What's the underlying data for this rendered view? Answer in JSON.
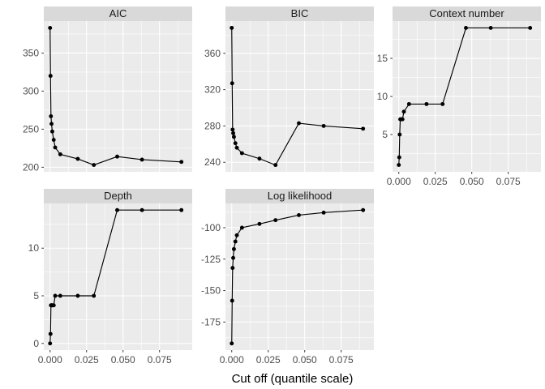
{
  "chart_data": {
    "type": "line",
    "title": "",
    "xlabel": "Cut off (quantile scale)",
    "ylabel": "",
    "legend": "none",
    "grid": "on",
    "x_domain": [
      -0.0043,
      0.0974
    ],
    "x_ticks": [
      0,
      0.025,
      0.05,
      0.075
    ],
    "x_tick_labels": [
      "0.000",
      "0.025",
      "0.050",
      "0.075"
    ],
    "x": [
      0,
      0.0003,
      0.0006,
      0.001,
      0.0015,
      0.0025,
      0.0035,
      0.007,
      0.019,
      0.03,
      0.046,
      0.063,
      0.09
    ],
    "facets": [
      {
        "label": "AIC",
        "values": [
          383,
          320,
          267,
          257,
          247,
          236,
          226,
          217,
          211,
          203,
          214,
          210,
          207
        ],
        "ylim": [
          194,
          392
        ],
        "yticks": [
          200,
          250,
          300,
          350
        ],
        "ytick_labels": [
          "200",
          "250",
          "300",
          "350"
        ]
      },
      {
        "label": "BIC",
        "values": [
          388,
          327,
          276,
          272,
          268,
          261,
          256,
          250,
          244,
          237,
          283,
          280,
          277
        ],
        "ylim": [
          229.5,
          395.5
        ],
        "yticks": [
          240,
          280,
          320,
          360
        ],
        "ytick_labels": [
          "240",
          "280",
          "320",
          "360"
        ]
      },
      {
        "label": "Context number",
        "values": [
          1,
          2,
          5,
          7,
          7,
          7,
          8,
          9,
          9,
          9,
          19,
          19,
          19
        ],
        "ylim": [
          0.1,
          19.9
        ],
        "yticks": [
          5,
          10,
          15
        ],
        "ytick_labels": [
          "5",
          "10",
          "15"
        ]
      },
      {
        "label": "Depth",
        "values": [
          0,
          1,
          4,
          4,
          4,
          4,
          5,
          5,
          5,
          5,
          14,
          14,
          14
        ],
        "ylim": [
          -0.7,
          14.7
        ],
        "yticks": [
          0,
          5,
          10
        ],
        "ytick_labels": [
          "0",
          "5",
          "10"
        ]
      },
      {
        "label": "Log likelihood",
        "values": [
          -192,
          -158,
          -132,
          -124,
          -117,
          -111,
          -106,
          -100,
          -97,
          -94,
          -90,
          -88,
          -86
        ],
        "ylim": [
          -197.3,
          -80.7
        ],
        "yticks": [
          -175,
          -150,
          -125,
          -100
        ],
        "ytick_labels": [
          "-175",
          "-150",
          "-125",
          "-100"
        ]
      }
    ],
    "style": {
      "panel_bg": "#ebebeb",
      "strip_bg": "#d9d9d9",
      "strip_text": "#1a1a1a",
      "grid_color": "#ffffff",
      "line_color": "#000000",
      "point_color": "#000000",
      "axis_text": "#4d4d4d",
      "tick_mark": "#333333",
      "plot_bg": "#ffffff"
    }
  }
}
